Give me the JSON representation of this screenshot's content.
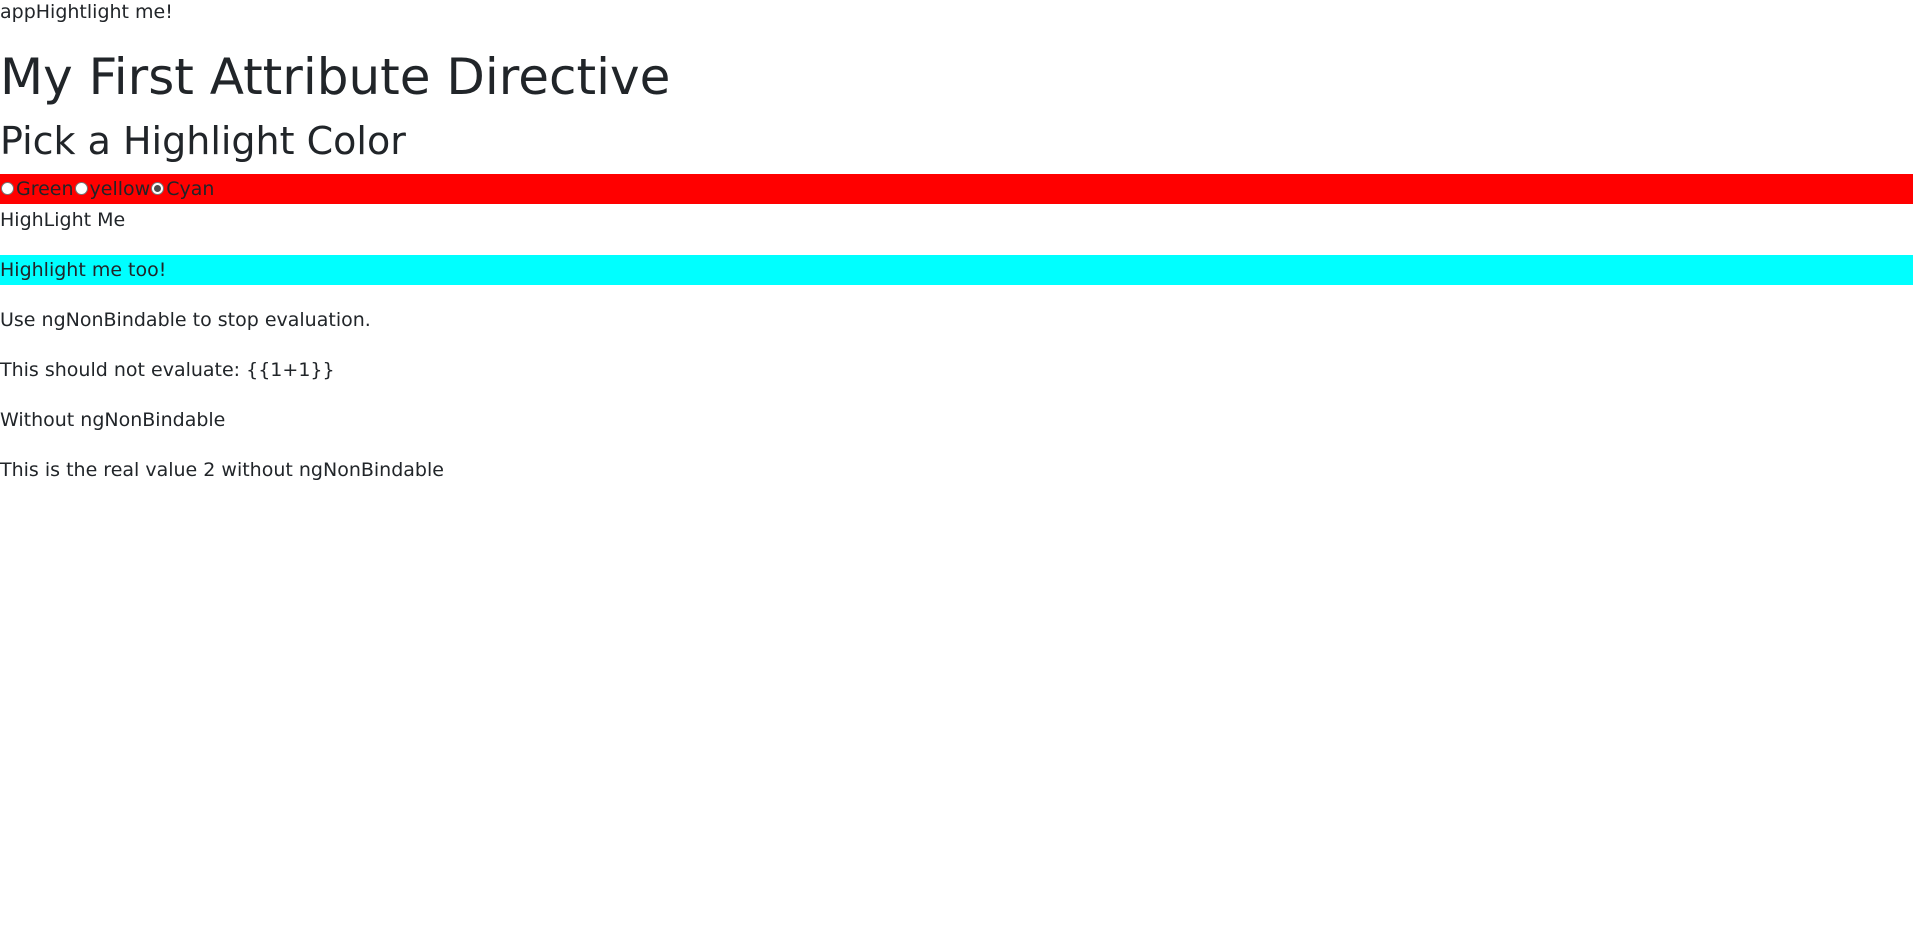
{
  "top_note": "appHightlight me!",
  "heading": "My First Attribute Directive",
  "subheading": "Pick a Highlight Color",
  "picker": {
    "background": "#ff0000",
    "options": [
      {
        "label": "Green",
        "checked": false
      },
      {
        "label": "yellow",
        "checked": false
      },
      {
        "label": "Cyan",
        "checked": true
      }
    ]
  },
  "lines": {
    "highlight_me": "HighLight Me",
    "highlight_me_too": "Highlight me too!",
    "highlight_me_too_color": "#00ffff",
    "use_nonbindable": "Use ngNonBindable to stop evaluation.",
    "should_not_evaluate": "This should not evaluate: {{1+1}}",
    "without_nonbindable": "Without ngNonBindable",
    "real_value": "This is the real value 2 without ngNonBindable"
  }
}
